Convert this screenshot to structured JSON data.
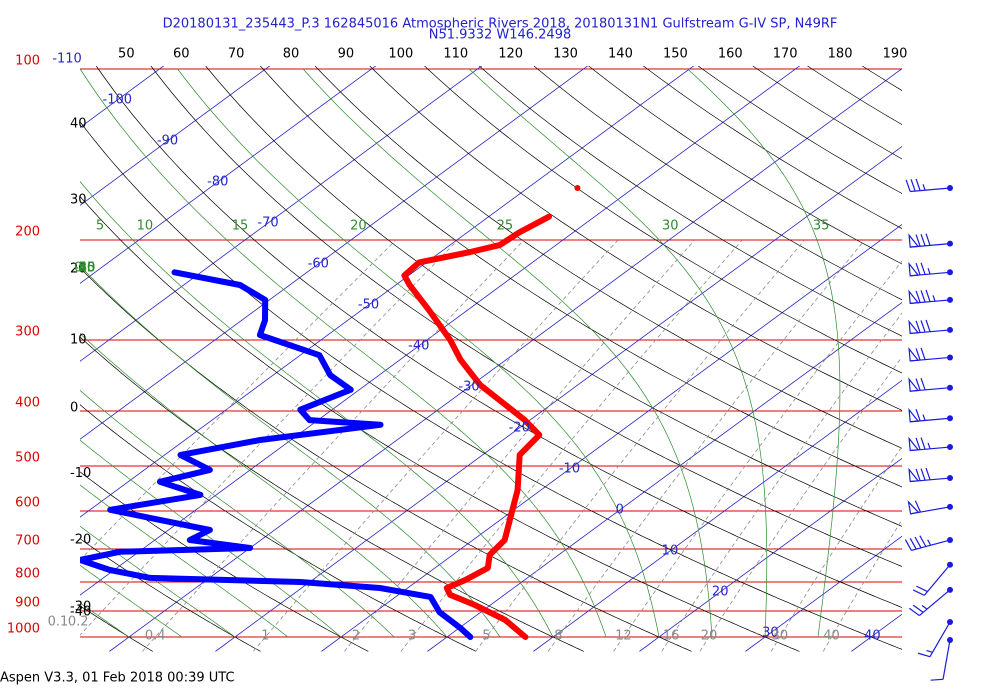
{
  "chart_data": {
    "type": "skewt",
    "title": "D20180131_235443_P.3 162845016 Atmospheric Rivers 2018, 20180131N1 Gulfstream G-IV SP, N49RF",
    "subtitle": "N51.9332 W146.2498",
    "footer": "Aspen V3.3, 01 Feb 2018  00:39 UTC",
    "plim": [
      100,
      1000
    ],
    "pressure_ticks": [
      100,
      200,
      300,
      400,
      500,
      600,
      700,
      800,
      900,
      1000
    ],
    "isotherms": [
      -110,
      -100,
      -90,
      -80,
      -70,
      -60,
      -50,
      -40,
      -30,
      -20,
      -10,
      0,
      10,
      20,
      30,
      40
    ],
    "dry_adiabats": [
      -40,
      -30,
      -20,
      -10,
      0,
      10,
      20,
      30,
      40,
      50,
      60,
      70,
      80,
      90,
      100,
      110,
      120,
      130,
      140,
      150,
      160,
      170,
      180,
      190
    ],
    "moist_adiabats": [
      -40,
      -35,
      -30,
      -25,
      -20,
      -15,
      -10,
      -5,
      0,
      5,
      10,
      15,
      20,
      25,
      30,
      35
    ],
    "mixing_ratios": [
      0.1,
      0.2,
      0.4,
      1,
      2,
      3,
      5,
      8,
      12,
      16,
      20,
      30,
      40
    ],
    "colors": {
      "pressure": "#dd0000",
      "isotherm": "#2626c8",
      "dry": "#000000",
      "moist": "#2e8b2e",
      "mixing": "#8a8a8a",
      "wind": "#1a1ae0"
    },
    "profiles": [
      {
        "color": "#ff0000",
        "pressure": [
          1000,
          933,
          878,
          843,
          820,
          794,
          756,
          717,
          675,
          603,
          551,
          478,
          441,
          415,
          390,
          360,
          325,
          300,
          266,
          240,
          231,
          219,
          210,
          204,
          194,
          182,
          170,
          162
        ],
        "values": [
          7.4,
          3.3,
          -1.5,
          -5.1,
          -6.3,
          -5.6,
          -5.0,
          -6.5,
          -7.0,
          -9.9,
          -12.2,
          -16.5,
          -17.2,
          -20.5,
          -24.3,
          -29.2,
          -34.3,
          -37.8,
          -43.6,
          -48.7,
          -50.4,
          -50.7,
          -47.2,
          -45.3,
          -45.1,
          -44.3,
          null,
          -45.3
        ]
      },
      {
        "color": "#0000ff",
        "pressure": [
          1000,
          964,
          904,
          850,
          820,
          800,
          787,
          762,
          732,
          708,
          697,
          675,
          648,
          617,
          597,
          562,
          533,
          508,
          478,
          450,
          423,
          415,
          398,
          367,
          346,
          319,
          294,
          277,
          255,
          240,
          228
        ],
        "values": [
          2.2,
          0.1,
          -3.9,
          -6.7,
          -12.6,
          -20.9,
          -35.6,
          -40.4,
          -44.5,
          -41.8,
          -30.0,
          -36.7,
          -36.1,
          -43.3,
          -48.1,
          -41.5,
          -47.0,
          -43.8,
          -48.5,
          -42.9,
          -33.5,
          -40.8,
          -43.0,
          -40.8,
          -44.6,
          -48.2,
          -56.4,
          -57.8,
          -60.4,
          -64.7,
          -72.5
        ]
      }
    ],
    "winds": {
      "pressure": [
        162,
        203,
        228,
        255,
        288,
        322,
        364,
        412,
        463,
        525,
        590,
        675,
        746,
        826,
        941,
        1012
      ],
      "speed": [
        35,
        80,
        75,
        85,
        80,
        70,
        70,
        65,
        75,
        80,
        60,
        45,
        20,
        25,
        15,
        10
      ],
      "direction": [
        265,
        265,
        265,
        265,
        265,
        265,
        265,
        265,
        265,
        265,
        260,
        255,
        220,
        230,
        210,
        190
      ]
    }
  }
}
